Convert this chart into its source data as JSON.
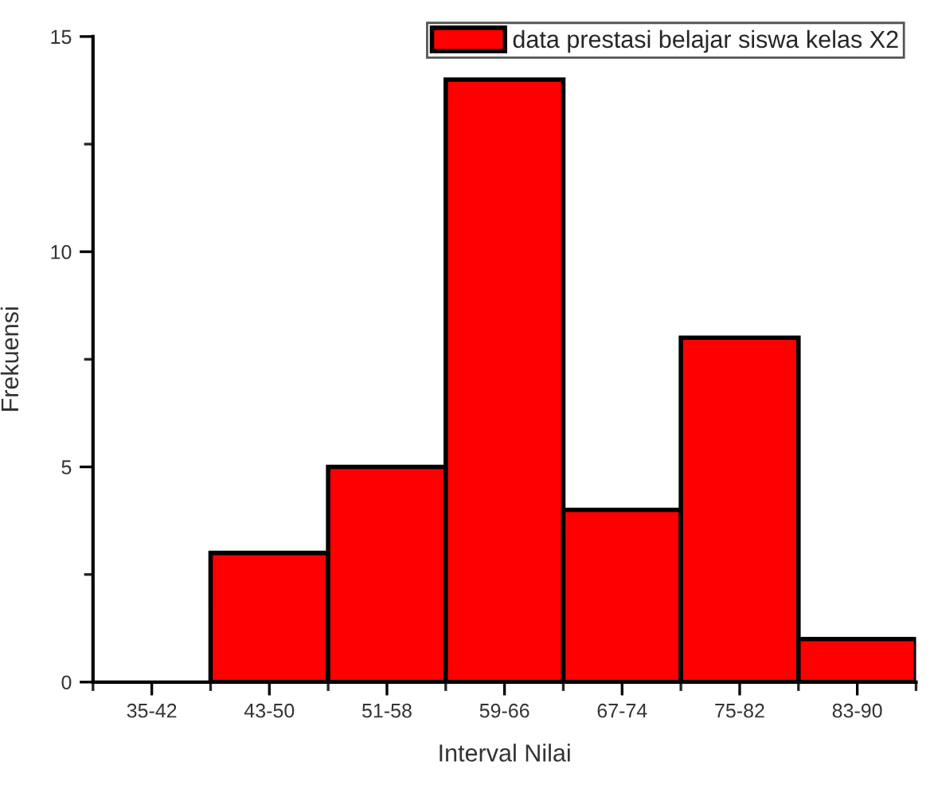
{
  "chart_data": {
    "type": "bar",
    "xlabel": "Interval Nilai",
    "ylabel": "Frekuensi",
    "categories": [
      "35-42",
      "43-50",
      "51-58",
      "59-66",
      "67-74",
      "75-82",
      "83-90"
    ],
    "series": [
      {
        "name": "data prestasi belajar siswa kelas X2",
        "color": "#ff0000",
        "values": [
          0,
          3,
          5,
          14,
          4,
          8,
          1
        ]
      }
    ],
    "ylim": [
      0,
      15
    ],
    "yticks": [
      0,
      5,
      10,
      15
    ],
    "legend": "top right",
    "grid": false
  }
}
